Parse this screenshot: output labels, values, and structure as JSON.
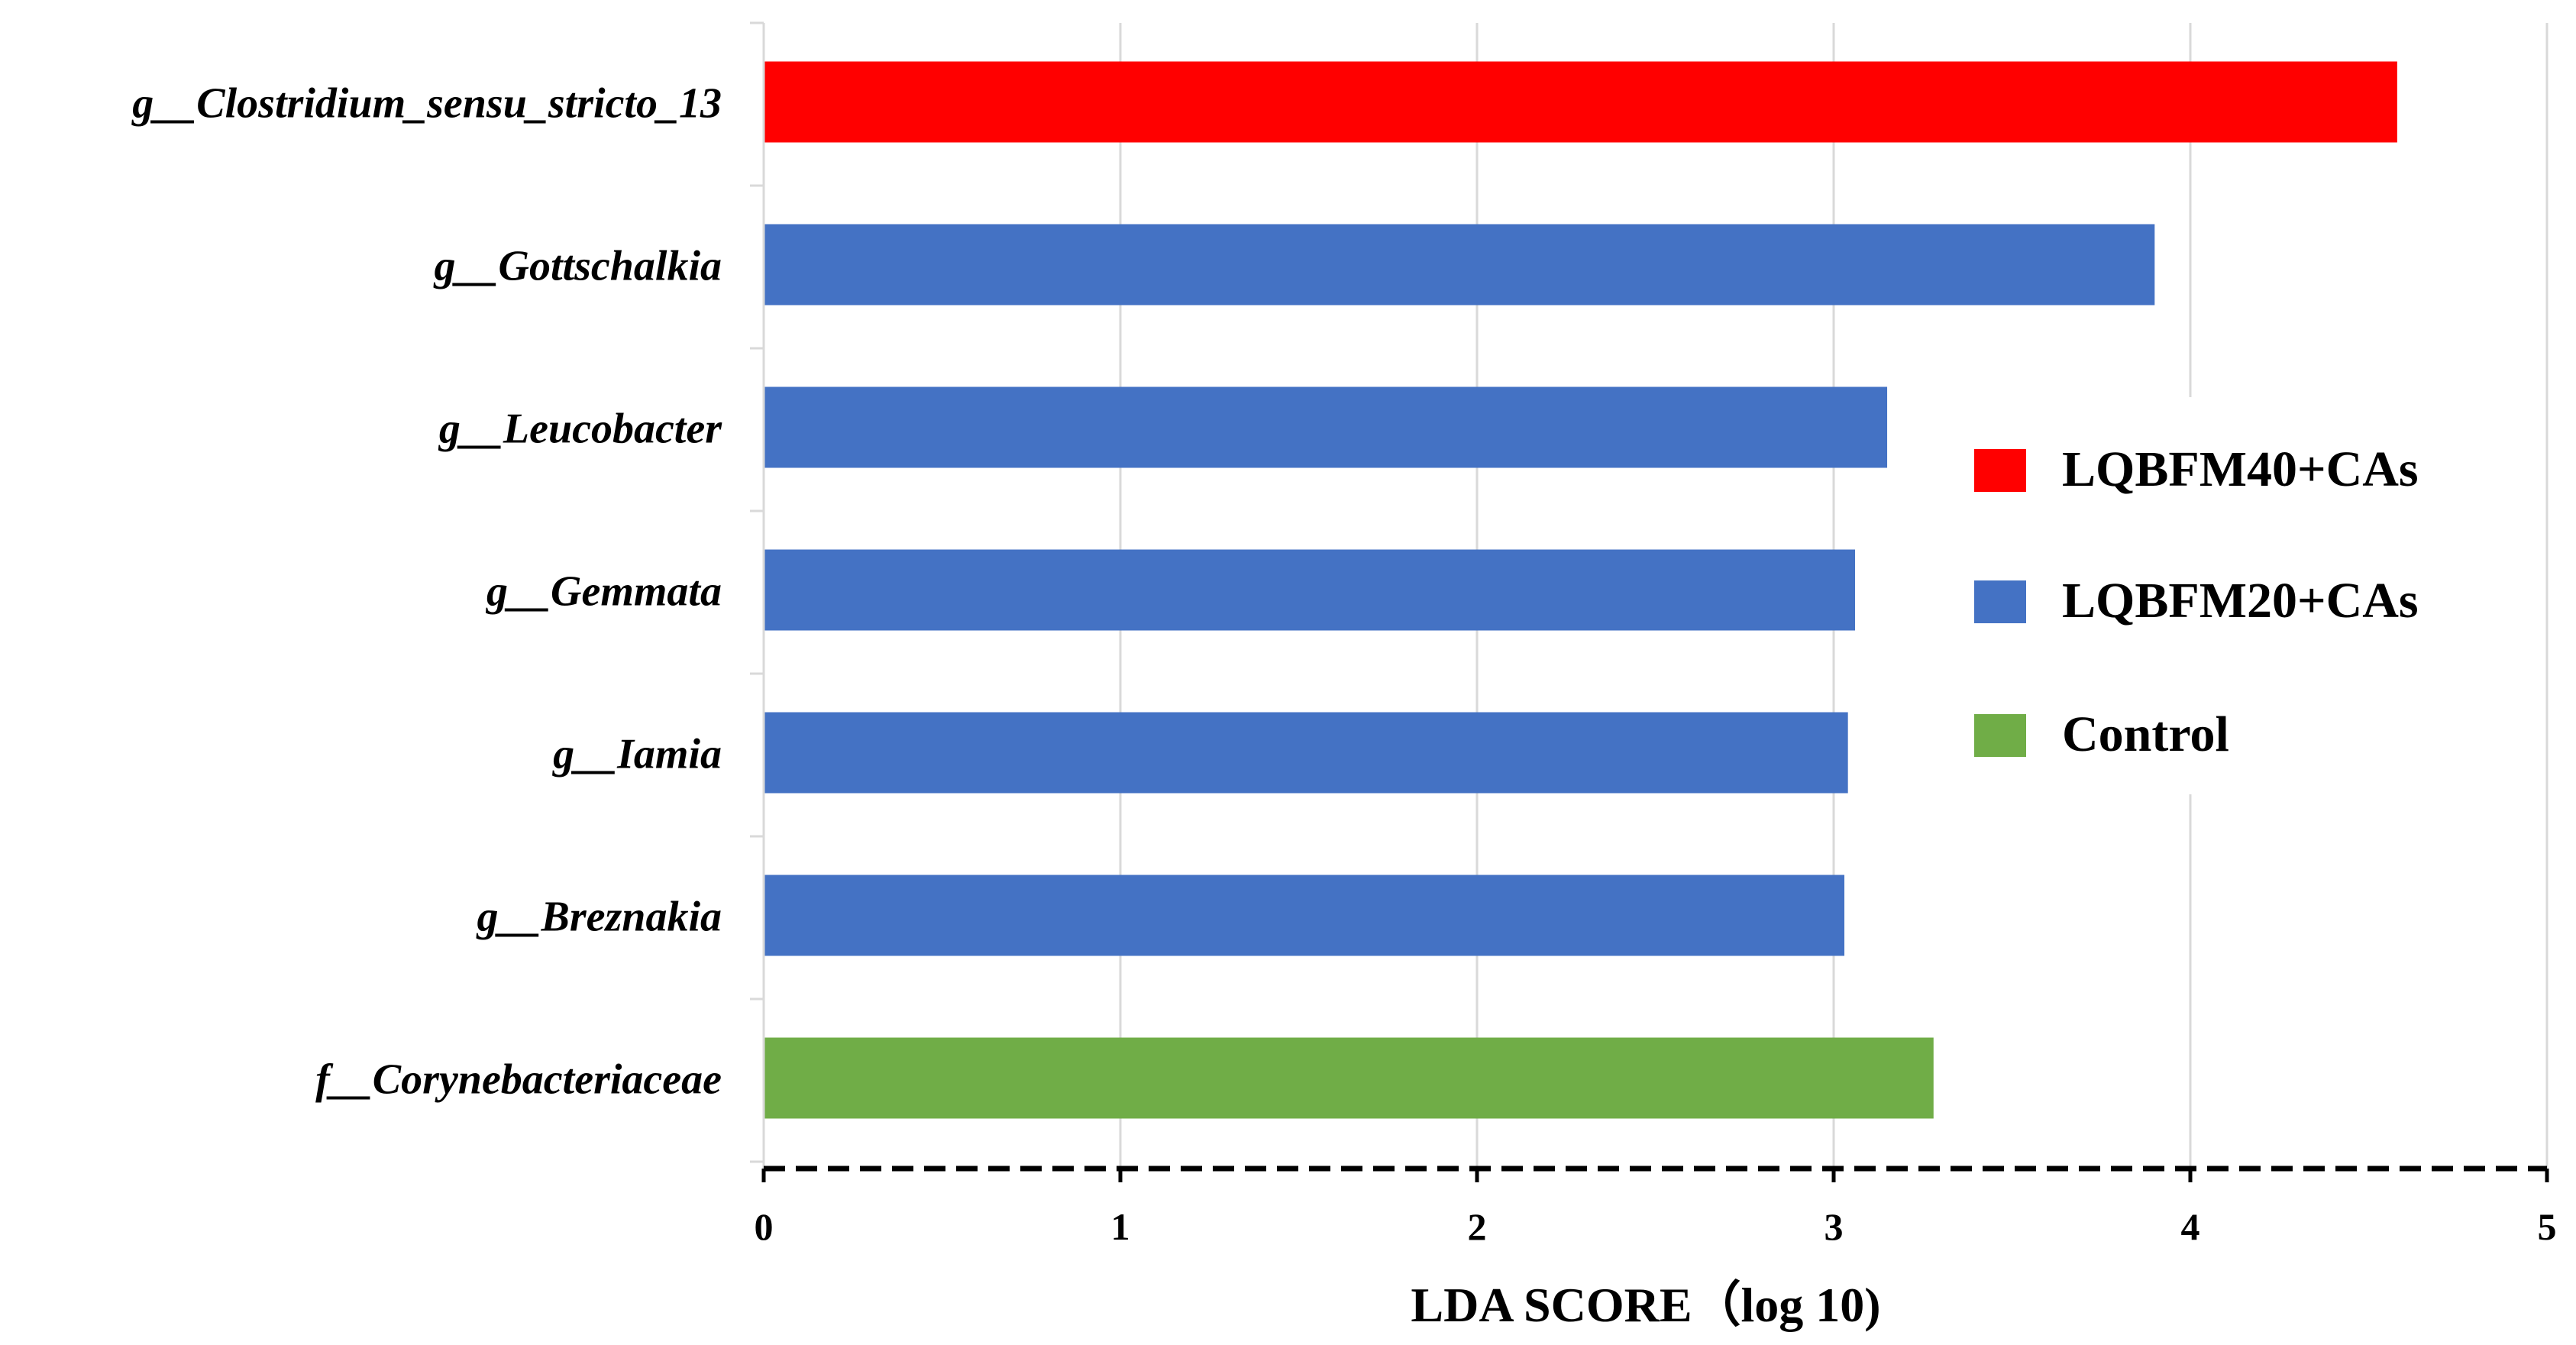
{
  "chart_data": {
    "type": "bar",
    "orientation": "horizontal",
    "title": "",
    "xlabel": "LDA  SCORE（log 10)",
    "ylabel": "",
    "xlim": [
      0,
      5
    ],
    "xticks": [
      0,
      1,
      2,
      3,
      4,
      5
    ],
    "grid": true,
    "legend_position": "right",
    "groups": [
      {
        "name": "LQBFM40+CAs",
        "color": "#FF0000"
      },
      {
        "name": "LQBFM20+CAs",
        "color": "#4472C4"
      },
      {
        "name": "Control",
        "color": "#70AD47"
      }
    ],
    "bars": [
      {
        "label": "g__Clostridium_sensu_stricto_13",
        "value": 4.58,
        "group": "LQBFM40+CAs"
      },
      {
        "label": "g__Gottschalkia",
        "value": 3.9,
        "group": "LQBFM20+CAs"
      },
      {
        "label": "g__Leucobacter",
        "value": 3.15,
        "group": "LQBFM20+CAs"
      },
      {
        "label": "g__Gemmata",
        "value": 3.06,
        "group": "LQBFM20+CAs"
      },
      {
        "label": "g__Iamia",
        "value": 3.04,
        "group": "LQBFM20+CAs"
      },
      {
        "label": "g__Breznakia",
        "value": 3.03,
        "group": "LQBFM20+CAs"
      },
      {
        "label": "f__Corynebacteriaceae",
        "value": 3.28,
        "group": "Control"
      }
    ]
  }
}
